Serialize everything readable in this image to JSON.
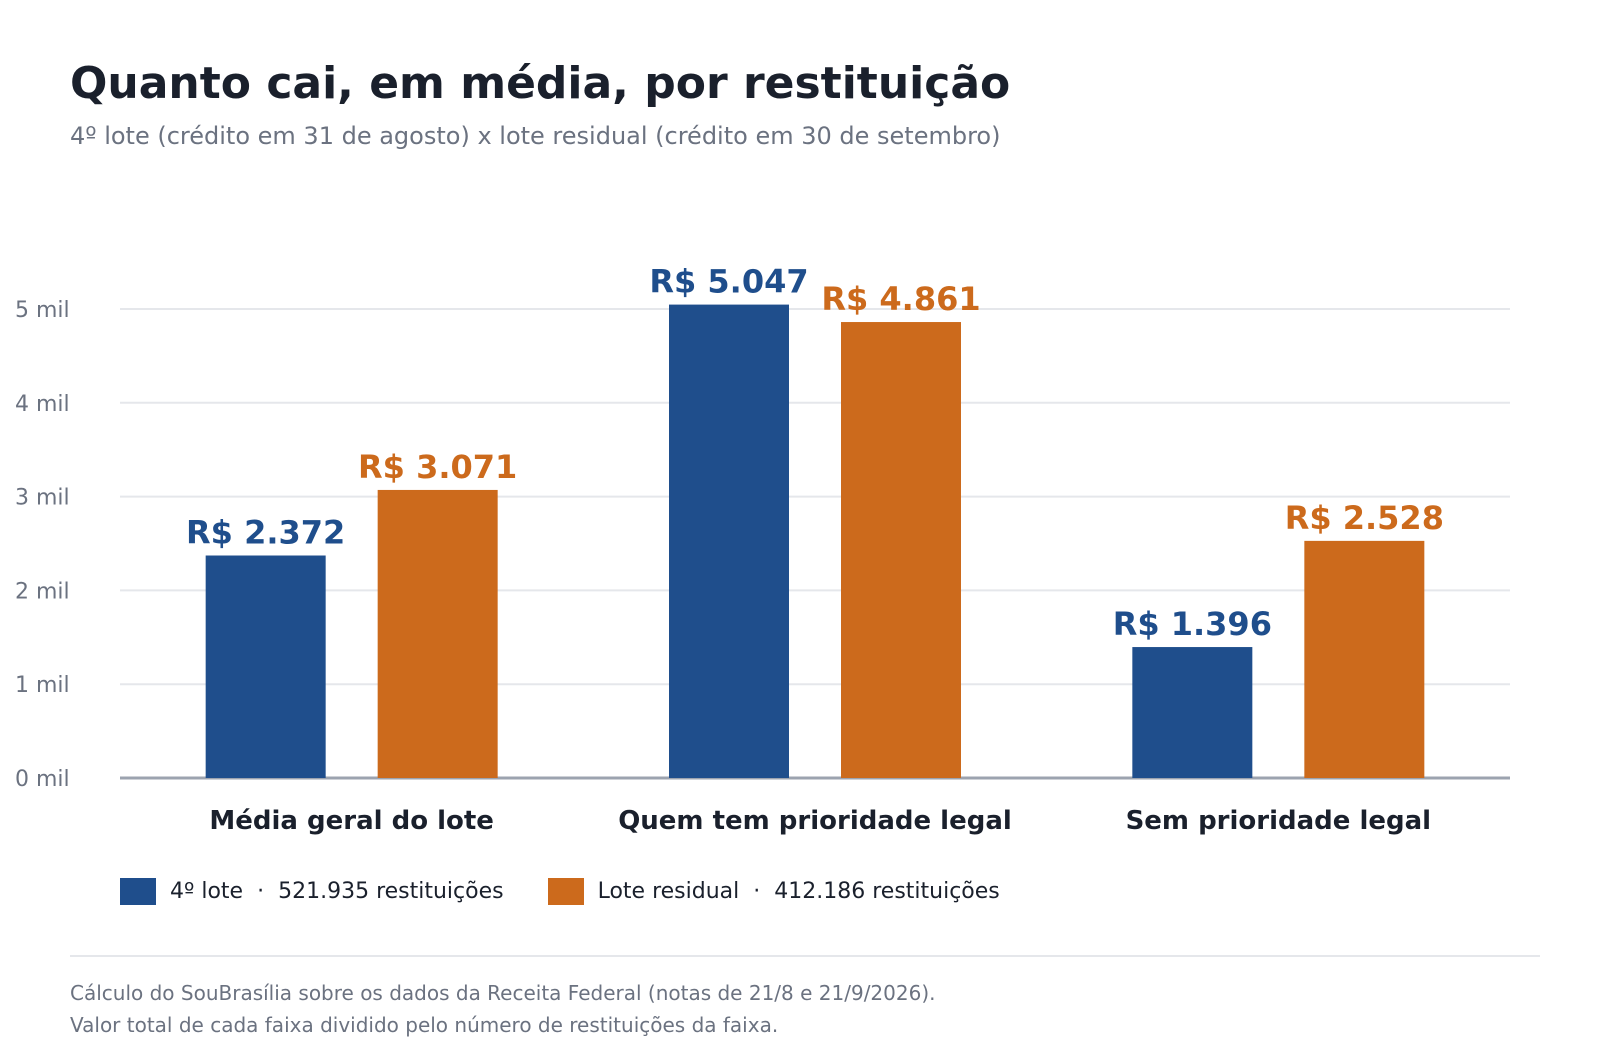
{
  "title": "Quanto cai, em média, por restituição",
  "subtitle": "4º lote (crédito em 31 de agosto) x lote residual (crédito em 30 de setembro)",
  "colors": {
    "series_1": "#1f4e8c",
    "series_2": "#cc6a1c",
    "grid": "#e5e7eb",
    "axis": "#9ca3af",
    "text": "#1a202c",
    "muted": "#6b7280"
  },
  "chart_data": {
    "type": "bar",
    "categories": [
      "Média geral do lote",
      "Quem tem prioridade legal",
      "Sem prioridade legal"
    ],
    "series": [
      {
        "name": "4º lote",
        "values": [
          2372,
          5047,
          1396
        ],
        "labels": [
          "R$ 2.372",
          "R$ 5.047",
          "R$ 1.396"
        ]
      },
      {
        "name": "Lote residual",
        "values": [
          3071,
          4861,
          2528
        ],
        "labels": [
          "R$ 3.071",
          "R$ 4.861",
          "R$ 2.528"
        ]
      }
    ],
    "y_ticks": [
      0,
      1000,
      2000,
      3000,
      4000,
      5000
    ],
    "y_tick_labels": [
      "0 mil",
      "1 mil",
      "2 mil",
      "3 mil",
      "4 mil",
      "5 mil"
    ],
    "ylim": [
      0,
      5000
    ],
    "grid": true,
    "legend_position": "bottom-left"
  },
  "legend": {
    "items": [
      {
        "label": "4º lote",
        "count": "521.935 restituições"
      },
      {
        "label": "Lote residual",
        "count": "412.186 restituições"
      }
    ],
    "separator": "·"
  },
  "notes": [
    "Cálculo do SouBrasília sobre os dados da Receita Federal (notas de 21/8 e 21/9/2026).",
    "Valor total de cada faixa dividido pelo número de restituições da faixa."
  ]
}
